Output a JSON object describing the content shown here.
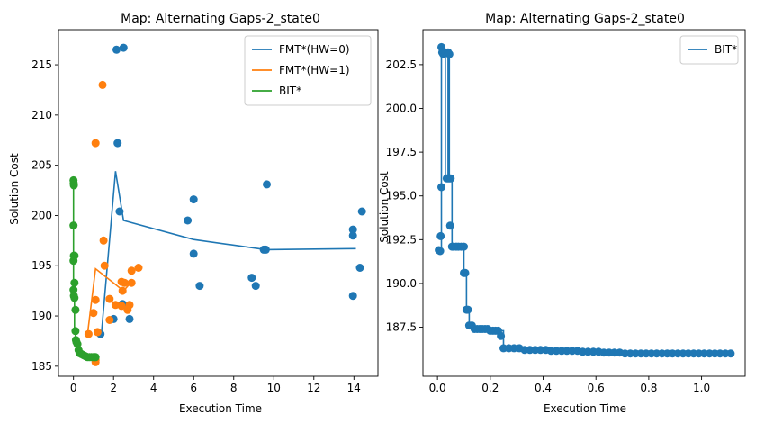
{
  "colors": {
    "blue": "#1f77b4",
    "orange": "#ff7f0e",
    "green": "#2ca02c"
  },
  "chart_data": [
    {
      "type": "scatter",
      "title": "Map: Alternating Gaps-2_state0",
      "xlabel": "Execution Time",
      "ylabel": "Solution Cost",
      "xlim": [
        -0.75,
        15.2
      ],
      "ylim": [
        184.0,
        218.5
      ],
      "xticks": [
        "0",
        "2",
        "4",
        "6",
        "8",
        "10",
        "12",
        "14"
      ],
      "xtick_values": [
        0,
        2,
        4,
        6,
        8,
        10,
        12,
        14
      ],
      "yticks": [
        "185",
        "190",
        "195",
        "200",
        "205",
        "210",
        "215"
      ],
      "ytick_values": [
        185,
        190,
        195,
        200,
        205,
        210,
        215
      ],
      "grid": false,
      "legend_position": "upper right",
      "series": [
        {
          "name": "FMT*(HW=0)",
          "color": "#1f77b4",
          "line": {
            "x": [
              1.4,
              2.1,
              2.5,
              6.0,
              9.6,
              14.1
            ],
            "y": [
              188.4,
              204.4,
              199.5,
              197.6,
              196.6,
              196.7
            ]
          },
          "points": [
            [
              2.15,
              216.5
            ],
            [
              2.5,
              216.7
            ],
            [
              2.2,
              207.2
            ],
            [
              2.3,
              200.4
            ],
            [
              5.7,
              199.5
            ],
            [
              6.0,
              201.6
            ],
            [
              6.0,
              196.2
            ],
            [
              6.3,
              193.0
            ],
            [
              9.5,
              196.6
            ],
            [
              9.6,
              196.6
            ],
            [
              9.65,
              203.1
            ],
            [
              8.9,
              193.8
            ],
            [
              9.1,
              193.0
            ],
            [
              13.95,
              198.6
            ],
            [
              13.95,
              198.0
            ],
            [
              14.4,
              200.4
            ],
            [
              14.3,
              194.8
            ],
            [
              13.95,
              192.0
            ],
            [
              1.35,
              188.2
            ],
            [
              2.0,
              189.7
            ],
            [
              2.8,
              189.7
            ],
            [
              2.45,
              191.2
            ]
          ]
        },
        {
          "name": "FMT*(HW=1)",
          "color": "#ff7f0e",
          "line": {
            "x": [
              0.7,
              1.1,
              2.5,
              2.9
            ],
            "y": [
              188.2,
              194.7,
              192.5,
              193.4
            ]
          },
          "points": [
            [
              1.45,
              213.0
            ],
            [
              1.1,
              207.2
            ],
            [
              1.5,
              197.5
            ],
            [
              1.55,
              195.0
            ],
            [
              1.1,
              191.6
            ],
            [
              1.0,
              190.3
            ],
            [
              0.75,
              188.2
            ],
            [
              1.2,
              188.4
            ],
            [
              1.1,
              185.6
            ],
            [
              1.1,
              185.4
            ],
            [
              1.8,
              191.7
            ],
            [
              1.8,
              189.6
            ],
            [
              2.1,
              191.1
            ],
            [
              2.4,
              193.4
            ],
            [
              2.55,
              193.3
            ],
            [
              2.45,
              192.5
            ],
            [
              2.4,
              191.0
            ],
            [
              2.7,
              190.6
            ],
            [
              2.8,
              191.1
            ],
            [
              2.9,
              193.3
            ],
            [
              2.9,
              194.5
            ],
            [
              3.25,
              194.8
            ]
          ]
        },
        {
          "name": "BIT*",
          "color": "#2ca02c",
          "line": {
            "x": [
              0.0,
              0.0,
              0.05,
              0.05,
              0.1,
              0.1,
              0.15,
              0.2,
              0.3,
              0.5,
              0.7,
              0.9,
              1.0,
              1.1
            ],
            "y": [
              203.5,
              192.0,
              192.0,
              188.5,
              188.5,
              187.5,
              187.0,
              186.6,
              186.3,
              186.2,
              186.1,
              186.0,
              185.95,
              185.9
            ]
          },
          "points": [
            [
              0.0,
              203.5
            ],
            [
              0.01,
              203.2
            ],
            [
              0.02,
              203.0
            ],
            [
              0.0,
              199.0
            ],
            [
              0.02,
              196.0
            ],
            [
              0.05,
              196.0
            ],
            [
              0.0,
              195.5
            ],
            [
              0.05,
              193.3
            ],
            [
              0.0,
              192.6
            ],
            [
              0.02,
              192.0
            ],
            [
              0.05,
              191.8
            ],
            [
              0.1,
              190.6
            ],
            [
              0.1,
              188.5
            ],
            [
              0.12,
              187.6
            ],
            [
              0.15,
              187.4
            ],
            [
              0.2,
              187.2
            ],
            [
              0.25,
              186.6
            ],
            [
              0.3,
              186.3
            ],
            [
              0.4,
              186.2
            ],
            [
              0.5,
              186.1
            ],
            [
              0.6,
              186.0
            ],
            [
              0.7,
              185.9
            ],
            [
              0.8,
              185.9
            ],
            [
              0.9,
              185.9
            ],
            [
              1.0,
              185.9
            ],
            [
              1.05,
              185.9
            ],
            [
              1.1,
              185.9
            ]
          ]
        }
      ]
    },
    {
      "type": "line",
      "title": "Map: Alternating Gaps-2_state0",
      "xlabel": "Execution Time",
      "ylabel": "Solution Cost",
      "xlim": [
        -0.055,
        1.165
      ],
      "ylim": [
        184.7,
        204.5
      ],
      "xticks": [
        "0.0",
        "0.2",
        "0.4",
        "0.6",
        "0.8",
        "1.0"
      ],
      "xtick_values": [
        0.0,
        0.2,
        0.4,
        0.6,
        0.8,
        1.0
      ],
      "yticks": [
        "187.5",
        "190.0",
        "192.5",
        "195.0",
        "197.5",
        "200.0",
        "202.5"
      ],
      "ytick_values": [
        187.5,
        190.0,
        192.5,
        195.0,
        197.5,
        200.0,
        202.5
      ],
      "grid": false,
      "legend_position": "upper right",
      "series": [
        {
          "name": "BIT*",
          "color": "#1f77b4",
          "step": [
            [
              0.005,
              191.9
            ],
            [
              0.015,
              191.9
            ],
            [
              0.015,
              203.5
            ],
            [
              0.02,
              203.5
            ],
            [
              0.02,
              203.2
            ],
            [
              0.03,
              203.2
            ],
            [
              0.03,
              196.0
            ],
            [
              0.04,
              196.0
            ],
            [
              0.04,
              203.2
            ],
            [
              0.045,
              203.2
            ],
            [
              0.045,
              196.0
            ],
            [
              0.055,
              196.0
            ],
            [
              0.055,
              192.1
            ],
            [
              0.1,
              192.1
            ],
            [
              0.1,
              190.6
            ],
            [
              0.11,
              190.6
            ],
            [
              0.11,
              188.5
            ],
            [
              0.12,
              188.5
            ],
            [
              0.12,
              187.6
            ],
            [
              0.14,
              187.6
            ],
            [
              0.14,
              187.4
            ],
            [
              0.2,
              187.4
            ],
            [
              0.2,
              187.3
            ],
            [
              0.25,
              187.3
            ],
            [
              0.25,
              186.3
            ],
            [
              0.33,
              186.3
            ],
            [
              0.33,
              186.2
            ],
            [
              0.42,
              186.2
            ],
            [
              0.42,
              186.15
            ],
            [
              0.55,
              186.15
            ],
            [
              0.55,
              186.1
            ],
            [
              0.62,
              186.1
            ],
            [
              0.62,
              186.05
            ],
            [
              0.7,
              186.05
            ],
            [
              0.7,
              186.0
            ],
            [
              1.11,
              186.0
            ]
          ],
          "points": [
            [
              0.005,
              191.9
            ],
            [
              0.01,
              191.85
            ],
            [
              0.012,
              192.7
            ],
            [
              0.015,
              195.5
            ],
            [
              0.015,
              203.5
            ],
            [
              0.018,
              203.2
            ],
            [
              0.022,
              203.1
            ],
            [
              0.03,
              203.2
            ],
            [
              0.04,
              203.2
            ],
            [
              0.045,
              203.1
            ],
            [
              0.035,
              196.0
            ],
            [
              0.04,
              196.0
            ],
            [
              0.045,
              196.0
            ],
            [
              0.05,
              196.0
            ],
            [
              0.048,
              193.3
            ],
            [
              0.055,
              192.1
            ],
            [
              0.06,
              192.1
            ],
            [
              0.07,
              192.1
            ],
            [
              0.08,
              192.1
            ],
            [
              0.09,
              192.1
            ],
            [
              0.1,
              192.1
            ],
            [
              0.1,
              190.6
            ],
            [
              0.105,
              190.6
            ],
            [
              0.11,
              188.5
            ],
            [
              0.115,
              188.5
            ],
            [
              0.12,
              187.6
            ],
            [
              0.13,
              187.6
            ],
            [
              0.14,
              187.4
            ],
            [
              0.15,
              187.4
            ],
            [
              0.16,
              187.4
            ],
            [
              0.17,
              187.4
            ],
            [
              0.18,
              187.4
            ],
            [
              0.19,
              187.4
            ],
            [
              0.2,
              187.3
            ],
            [
              0.21,
              187.3
            ],
            [
              0.22,
              187.3
            ],
            [
              0.23,
              187.3
            ],
            [
              0.24,
              187.0
            ],
            [
              0.25,
              186.3
            ],
            [
              0.27,
              186.3
            ],
            [
              0.29,
              186.3
            ],
            [
              0.31,
              186.3
            ],
            [
              0.33,
              186.2
            ],
            [
              0.35,
              186.2
            ],
            [
              0.37,
              186.2
            ],
            [
              0.39,
              186.2
            ],
            [
              0.41,
              186.2
            ],
            [
              0.43,
              186.15
            ],
            [
              0.45,
              186.15
            ],
            [
              0.47,
              186.15
            ],
            [
              0.49,
              186.15
            ],
            [
              0.51,
              186.15
            ],
            [
              0.53,
              186.15
            ],
            [
              0.55,
              186.1
            ],
            [
              0.57,
              186.1
            ],
            [
              0.59,
              186.1
            ],
            [
              0.61,
              186.1
            ],
            [
              0.63,
              186.05
            ],
            [
              0.65,
              186.05
            ],
            [
              0.67,
              186.05
            ],
            [
              0.69,
              186.05
            ],
            [
              0.71,
              186.0
            ],
            [
              0.73,
              186.0
            ],
            [
              0.75,
              186.0
            ],
            [
              0.77,
              186.0
            ],
            [
              0.79,
              186.0
            ],
            [
              0.81,
              186.0
            ],
            [
              0.83,
              186.0
            ],
            [
              0.85,
              186.0
            ],
            [
              0.87,
              186.0
            ],
            [
              0.89,
              186.0
            ],
            [
              0.91,
              186.0
            ],
            [
              0.93,
              186.0
            ],
            [
              0.95,
              186.0
            ],
            [
              0.97,
              186.0
            ],
            [
              0.99,
              186.0
            ],
            [
              1.01,
              186.0
            ],
            [
              1.03,
              186.0
            ],
            [
              1.05,
              186.0
            ],
            [
              1.07,
              186.0
            ],
            [
              1.09,
              186.0
            ],
            [
              1.11,
              186.0
            ]
          ]
        }
      ]
    }
  ]
}
